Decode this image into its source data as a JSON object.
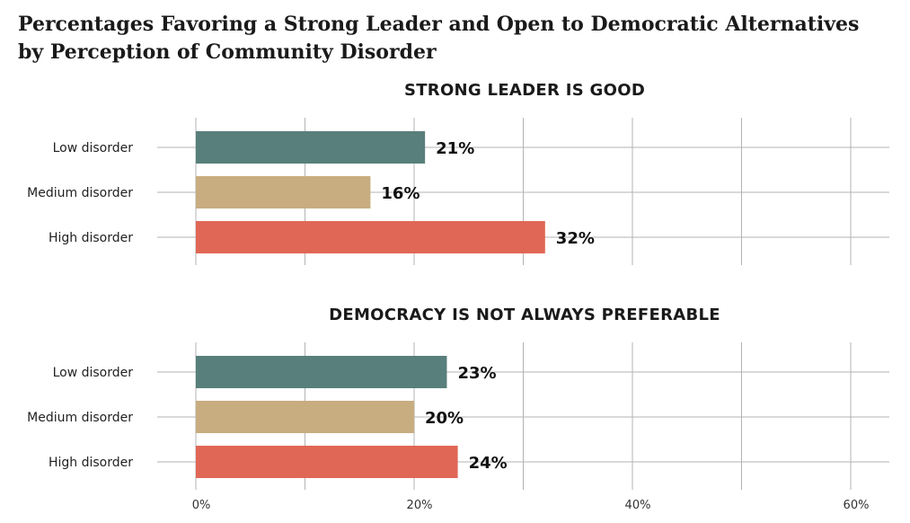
{
  "title": {
    "line1": "Percentages Favoring a Strong Leader and Open to Democratic Alternatives",
    "line2": "by Perception of Community Disorder"
  },
  "colors": {
    "low": "#587f7b",
    "medium": "#c8ad80",
    "high": "#e06755",
    "grid": "#b3b3b3"
  },
  "chart_data": [
    {
      "type": "bar",
      "orientation": "horizontal",
      "title": "STRONG LEADER IS GOOD",
      "categories": [
        "Low disorder",
        "Medium disorder",
        "High disorder"
      ],
      "values": [
        21,
        16,
        32
      ],
      "value_labels": [
        "21%",
        "16%",
        "32%"
      ],
      "xlim": [
        0,
        63
      ],
      "grid": true
    },
    {
      "type": "bar",
      "orientation": "horizontal",
      "title": "DEMOCRACY IS NOT ALWAYS PREFERABLE",
      "categories": [
        "Low disorder",
        "Medium disorder",
        "High disorder"
      ],
      "values": [
        23,
        20,
        24
      ],
      "value_labels": [
        "23%",
        "20%",
        "24%"
      ],
      "xlim": [
        0,
        63
      ],
      "grid": true
    }
  ],
  "x_axis": {
    "ticks": [
      0,
      20,
      40,
      60
    ],
    "tick_labels": [
      "0%",
      "20%",
      "40%",
      "60%"
    ]
  }
}
